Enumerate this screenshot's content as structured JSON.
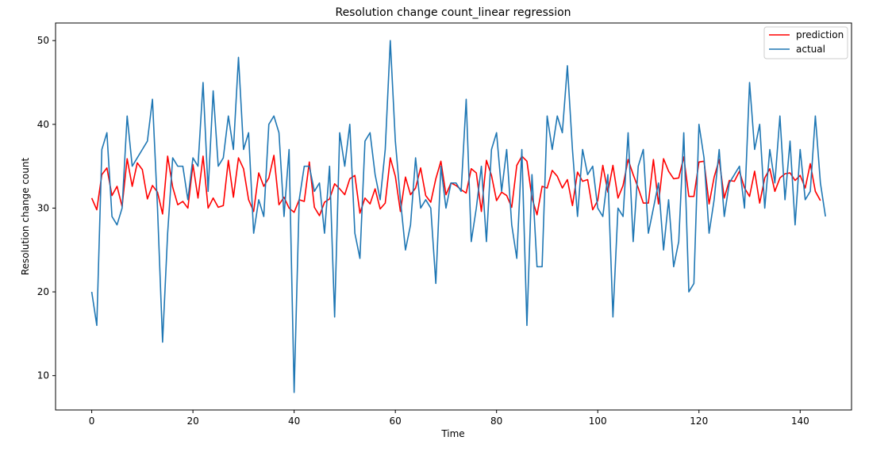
{
  "chart_data": {
    "type": "line",
    "title": "Resolution change count_linear regression",
    "xlabel": "Time",
    "ylabel": "Resolution change count",
    "xlim": [
      -7.15,
      150.15
    ],
    "ylim": [
      5.9,
      52.1
    ],
    "xticks": [
      0,
      20,
      40,
      60,
      80,
      100,
      120,
      140
    ],
    "yticks": [
      10,
      20,
      30,
      40,
      50
    ],
    "grid": false,
    "legend_position": "top-right",
    "series": [
      {
        "name": "prediction",
        "color": "#ff0000",
        "x_start": 0,
        "values": [
          31.2,
          29.8,
          34.0,
          34.8,
          31.5,
          32.6,
          30.2,
          35.9,
          32.6,
          35.4,
          34.6,
          31.1,
          32.7,
          31.9,
          29.3,
          36.2,
          32.5,
          30.4,
          30.8,
          30.0,
          35.2,
          31.2,
          36.2,
          30.0,
          31.2,
          30.1,
          30.3,
          35.7,
          31.3,
          36.0,
          34.7,
          31.0,
          29.6,
          34.2,
          32.6,
          33.6,
          36.3,
          30.4,
          31.3,
          30.0,
          29.5,
          31.0,
          30.8,
          35.5,
          30.1,
          29.1,
          30.7,
          31.1,
          32.9,
          32.3,
          31.6,
          33.5,
          33.9,
          29.4,
          31.2,
          30.5,
          32.3,
          29.9,
          30.6,
          36.0,
          33.8,
          29.6,
          33.7,
          31.6,
          32.4,
          34.8,
          31.5,
          30.7,
          33.5,
          35.6,
          31.6,
          33.0,
          32.7,
          32.2,
          31.8,
          34.7,
          34.2,
          29.6,
          35.7,
          33.9,
          30.9,
          31.9,
          31.5,
          30.1,
          35.1,
          36.2,
          35.6,
          31.2,
          29.2,
          32.6,
          32.4,
          34.5,
          33.8,
          32.4,
          33.4,
          30.3,
          34.3,
          33.2,
          33.4,
          29.8,
          30.9,
          35.1,
          31.9,
          35.1,
          31.2,
          32.7,
          35.8,
          34.0,
          32.4,
          30.6,
          30.6,
          35.8,
          30.5,
          35.9,
          34.4,
          33.5,
          33.6,
          36.1,
          31.4,
          31.4,
          35.5,
          35.6,
          30.5,
          33.7,
          35.8,
          31.2,
          33.3,
          33.2,
          34.4,
          32.4,
          31.4,
          34.4,
          30.6,
          33.6,
          34.7,
          32.0,
          33.6,
          34.1,
          34.2,
          33.3,
          33.9,
          32.4,
          35.3,
          32.0,
          30.9
        ]
      },
      {
        "name": "actual",
        "color": "#1f77b4",
        "x_start": 0,
        "values": [
          20,
          16,
          37,
          39,
          29,
          28,
          30,
          41,
          35,
          36,
          37,
          38,
          43,
          30,
          14,
          27,
          36,
          35,
          35,
          31,
          36,
          35,
          45,
          32,
          44,
          35,
          36,
          41,
          37,
          48,
          37,
          39,
          27,
          31,
          29,
          40,
          41,
          39,
          29,
          37,
          8,
          31,
          35,
          35,
          32,
          33,
          27,
          35,
          17,
          39,
          35,
          40,
          27,
          24,
          38,
          39,
          34,
          31,
          37,
          50,
          38,
          31,
          25,
          28,
          36,
          30,
          31,
          30,
          21,
          35,
          30,
          33,
          33,
          32,
          43,
          26,
          30,
          35,
          26,
          37,
          39,
          32,
          37,
          28,
          24,
          37,
          16,
          34,
          23,
          23,
          41,
          37,
          41,
          39,
          47,
          37,
          29,
          37,
          34,
          35,
          30,
          29,
          34,
          17,
          30,
          29,
          39,
          26,
          35,
          37,
          27,
          30,
          33,
          25,
          31,
          23,
          26,
          39,
          20,
          21,
          40,
          36,
          27,
          31,
          37,
          29,
          33,
          34,
          35,
          30,
          45,
          37,
          40,
          30,
          37,
          33,
          41,
          31,
          38,
          28,
          37,
          31,
          32,
          41,
          33,
          29
        ]
      }
    ]
  }
}
